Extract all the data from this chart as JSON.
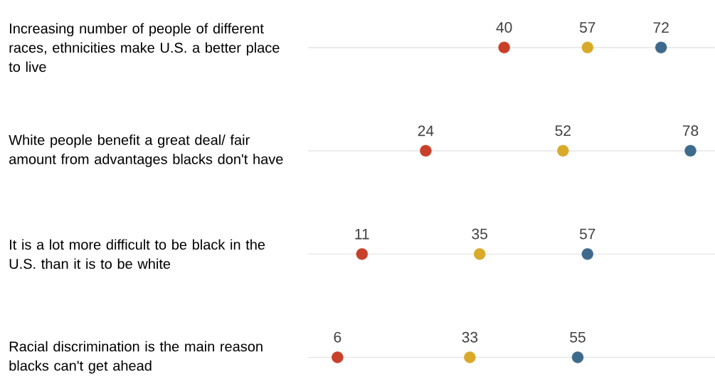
{
  "chart_data": {
    "type": "scatter",
    "orientation": "horizontal",
    "categories": [
      "Increasing number of people of different races, ethnicities make U.S. a better place to live",
      "White people benefit a great deal/ fair amount from advantages blacks don't have",
      "It is a lot more difficult to be black in the U.S. than it is to be white",
      "Racial discrimination is the main reason blacks can't get ahead"
    ],
    "series": [
      {
        "color": "#c8402a",
        "values": [
          40,
          24,
          11,
          6
        ]
      },
      {
        "color": "#d9a92a",
        "values": [
          57,
          52,
          35,
          33
        ]
      },
      {
        "color": "#3e6a8c",
        "values": [
          72,
          78,
          57,
          55
        ]
      }
    ],
    "xlim": [
      0,
      83
    ],
    "tick_labels": "y",
    "grid": "y",
    "data_labels": true
  }
}
